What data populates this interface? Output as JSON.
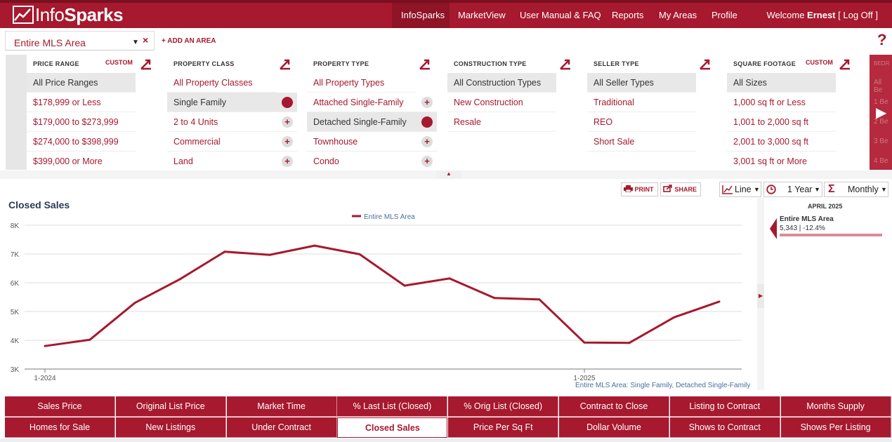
{
  "header": {
    "logo_light": "Info",
    "logo_bold": "Sparks",
    "nav": [
      "InfoSparks",
      "MarketView",
      "User Manual & FAQ",
      "Reports",
      "My Areas",
      "Profile"
    ],
    "welcome_prefix": "Welcome ",
    "welcome_user": "Ernest",
    "logoff": "[ Log Off ]"
  },
  "area": {
    "selected": "Entire MLS Area",
    "clear": "×",
    "add_label": "+ ADD AN AREA",
    "help": "?"
  },
  "filters": {
    "price_range": {
      "title": "PRICE RANGE",
      "custom": "CUSTOM",
      "items": [
        "All Price Ranges",
        "$178,999 or Less",
        "$179,000 to $273,999",
        "$274,000 to $398,999",
        "$399,000 or More"
      ]
    },
    "property_class": {
      "title": "PROPERTY CLASS",
      "items": [
        "All Property Classes",
        "Single Family",
        "2 to 4 Units",
        "Commercial",
        "Land"
      ]
    },
    "property_type": {
      "title": "PROPERTY TYPE",
      "items": [
        "All Property Types",
        "Attached Single-Family",
        "Detached Single-Family",
        "Townhouse",
        "Condo"
      ]
    },
    "construction_type": {
      "title": "CONSTRUCTION TYPE",
      "items": [
        "All Construction Types",
        "New Construction",
        "Resale"
      ]
    },
    "seller_type": {
      "title": "SELLER TYPE",
      "items": [
        "All Seller Types",
        "Traditional",
        "REO",
        "Short Sale"
      ]
    },
    "square_footage": {
      "title": "SQUARE FOOTAGE",
      "custom": "CUSTOM",
      "items": [
        "All Sizes",
        "1,000 sq ft or Less",
        "1,001 to 2,000 sq ft",
        "2,001 to 3,000 sq ft",
        "3,001 sq ft or More"
      ]
    },
    "ghost": [
      "BEDR",
      "All Be",
      "1 Be",
      "2 Be",
      "3 Be",
      "4 Be"
    ]
  },
  "toolbar": {
    "print": "PRINT",
    "share": "SHARE",
    "chart_type": "Line",
    "period": "1 Year",
    "aggregation": "Monthly"
  },
  "chart": {
    "title": "Closed Sales",
    "subcaption": "Entire MLS Area: Single Family, Detached Single-Family",
    "accent": "#a6192e"
  },
  "chart_data": {
    "type": "line",
    "title": "Closed Sales",
    "x": [
      "1-2024",
      "2-2024",
      "3-2024",
      "4-2024",
      "5-2024",
      "6-2024",
      "7-2024",
      "8-2024",
      "9-2024",
      "10-2024",
      "11-2024",
      "12-2024",
      "1-2025",
      "2-2025",
      "3-2025",
      "4-2025"
    ],
    "x_tick_labels": [
      "1-2024",
      "1-2025"
    ],
    "y_tick_labels": [
      "3K",
      "4K",
      "5K",
      "6K",
      "7K",
      "8K"
    ],
    "series": [
      {
        "name": "Entire MLS Area",
        "values": [
          3800,
          4020,
          5300,
          6120,
          7080,
          6970,
          7290,
          6990,
          5900,
          6150,
          5470,
          5420,
          3920,
          3910,
          4800,
          5343
        ]
      }
    ],
    "ylim": [
      3000,
      8000
    ],
    "grid": true,
    "legend": "top-center"
  },
  "side_panel": {
    "date": "APRIL 2025",
    "area": "Entire MLS Area",
    "value": "5,343 | -12.4%"
  },
  "metric_tabs": [
    "Sales Price",
    "Original List Price",
    "Market Time",
    "% Last List (Closed)",
    "% Orig List (Closed)",
    "Contract to Close",
    "Listing to Contract",
    "Months Supply",
    "Homes for Sale",
    "New Listings",
    "Under Contract",
    "Closed Sales",
    "Price Per Sq Ft",
    "Dollar Volume",
    "Shows to Contract",
    "Shows Per Listing"
  ],
  "active_tab": "Closed Sales"
}
